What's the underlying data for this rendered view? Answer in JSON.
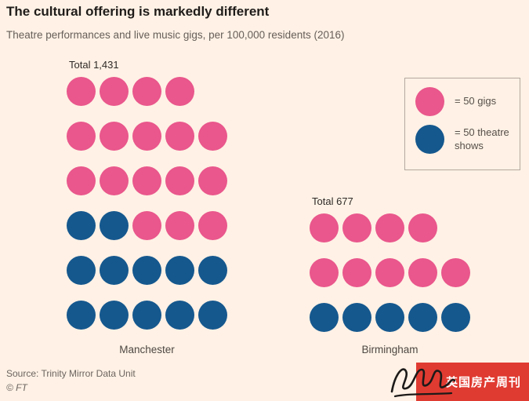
{
  "header": {
    "title": "The cultural offering is markedly different",
    "subtitle": "Theatre performances and live music gigs, per 100,000 residents (2016)"
  },
  "legend": {
    "gig": "= 50 gigs",
    "theatre": "= 50 theatre shows"
  },
  "footer": {
    "source": "Source: Trinity Mirror Data Unit",
    "copyright": "© FT"
  },
  "watermark": {
    "text": "英国房产周刊"
  },
  "colors": {
    "background": "#FFF1E5",
    "gig_pink": "#E9578C",
    "theatre_blue": "#15588E",
    "watermark_red": "#E03B31"
  },
  "chart_data": {
    "type": "pictogram",
    "unit_value": 50,
    "unit_desc": "each circle represents 50 performances per 100,000 residents",
    "legend": [
      {
        "label": "= 50 gigs",
        "color_key": "gig_pink"
      },
      {
        "label": "= 50 theatre shows",
        "color_key": "theatre_blue"
      }
    ],
    "groups": [
      {
        "name": "Manchester",
        "total_label": "Total 1,431",
        "total": 1431,
        "gig_circles": 17,
        "theatre_circles": 12,
        "rows": [
          [
            "gig",
            "gig",
            "gig",
            "gig"
          ],
          [
            "gig",
            "gig",
            "gig",
            "gig",
            "gig"
          ],
          [
            "gig",
            "gig",
            "gig",
            "gig",
            "gig"
          ],
          [
            "theatre",
            "theatre",
            "gig",
            "gig",
            "gig"
          ],
          [
            "theatre",
            "theatre",
            "theatre",
            "theatre",
            "theatre"
          ],
          [
            "theatre",
            "theatre",
            "theatre",
            "theatre",
            "theatre"
          ]
        ]
      },
      {
        "name": "Birmingham",
        "total_label": "Total 677",
        "total": 677,
        "gig_circles": 9,
        "theatre_circles": 5,
        "rows": [
          [
            "gig",
            "gig",
            "gig",
            "gig"
          ],
          [
            "gig",
            "gig",
            "gig",
            "gig",
            "gig"
          ],
          [
            "theatre",
            "theatre",
            "theatre",
            "theatre",
            "theatre"
          ]
        ]
      }
    ]
  }
}
